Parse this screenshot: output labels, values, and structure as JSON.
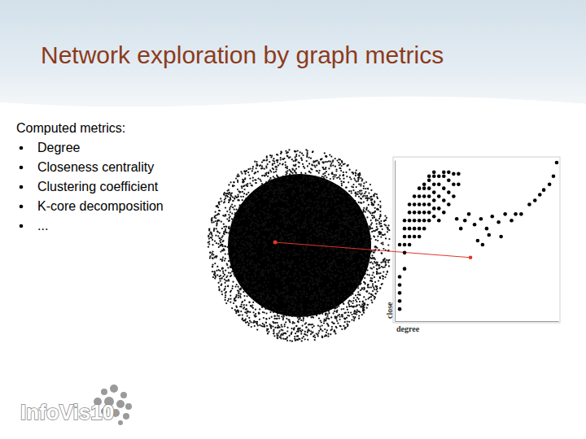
{
  "slide": {
    "title": "Network exploration by graph metrics",
    "intro": "Computed metrics:",
    "bullets": [
      "Degree",
      "Closeness centrality",
      "Clustering coefficient",
      "K-core decomposition",
      "..."
    ],
    "logo": "InfoVis10"
  },
  "chart_data": {
    "type": "scatter",
    "x_label": "degree",
    "y_label": "close",
    "xlim": [
      0,
      100
    ],
    "ylim": [
      0,
      100
    ],
    "tick_labels": false,
    "grid": false,
    "marker": "circle",
    "series": [
      {
        "color": "#000000",
        "x": [
          3,
          3,
          3,
          3,
          3,
          3,
          6,
          6,
          6,
          6,
          6,
          6,
          9,
          9,
          9,
          9,
          9,
          9,
          12,
          12,
          12,
          12,
          12,
          12,
          15,
          15,
          15,
          15,
          15,
          15,
          15,
          18,
          18,
          18,
          18,
          18,
          18,
          18,
          21,
          21,
          21,
          21,
          21,
          21,
          21,
          24,
          24,
          24,
          24,
          24,
          24,
          24,
          27,
          27,
          27,
          27,
          27,
          30,
          30,
          30,
          30,
          30,
          33,
          33,
          33,
          33,
          36,
          36,
          36,
          39,
          39,
          42.9,
          45.3,
          48.8,
          52.7,
          56.2,
          59.6,
          63.5,
          67.5,
          71.4,
          73.9,
          57.6,
          50.7,
          65,
          77.3,
          82.3,
          85.7,
          88.7,
          91.1,
          94.6,
          97,
          99,
          53.7,
          37.9,
          40.4
        ],
        "values": [
          7.5,
          12.5,
          17.5,
          22.5,
          27.5,
          47.5,
          32.5,
          42.5,
          47.5,
          52.5,
          57.5,
          62.5,
          47.5,
          52.5,
          57.5,
          62.5,
          67.5,
          72.5,
          52.5,
          57.5,
          62.5,
          67.5,
          72.5,
          77.5,
          52.5,
          57.5,
          62.5,
          67.5,
          72.5,
          77.5,
          82.5,
          57.5,
          62.5,
          67.5,
          72.5,
          77.5,
          82.5,
          85,
          62.5,
          67.5,
          72.5,
          77.5,
          82.5,
          87.5,
          90,
          65,
          70,
          75,
          80,
          85,
          90,
          92.5,
          62.5,
          70,
          77.5,
          85,
          90,
          67.5,
          75,
          82.5,
          90,
          92.5,
          72.5,
          80,
          87.5,
          92.5,
          77.5,
          85,
          91.5,
          85,
          91.5,
          62.5,
          66.5,
          60,
          63.5,
          57.5,
          65,
          61.5,
          66.5,
          62.5,
          66.5,
          53.5,
          50,
          52.5,
          66.5,
          72.5,
          75,
          78.5,
          81.5,
          85,
          90,
          98.5,
          47.5,
          63.5,
          57.5
        ]
      },
      {
        "color": "#e0362c",
        "x": [
          46.3
        ],
        "values": [
          39.5
        ]
      }
    ]
  }
}
